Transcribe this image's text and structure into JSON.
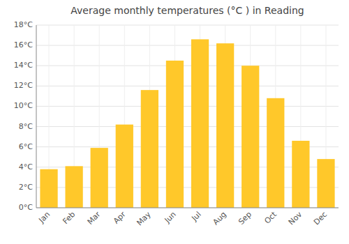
{
  "chart_data": {
    "type": "bar",
    "title": "Average monthly temperatures (°C ) in Reading",
    "categories": [
      "Jan",
      "Feb",
      "Mar",
      "Apr",
      "May",
      "Jun",
      "Jul",
      "Aug",
      "Sep",
      "Oct",
      "Nov",
      "Dec"
    ],
    "values": [
      3.8,
      4.1,
      5.9,
      8.2,
      11.6,
      14.5,
      16.6,
      16.2,
      14.0,
      10.8,
      6.6,
      4.8
    ],
    "color": "#FFC82A",
    "ylim": [
      0,
      18
    ],
    "yticks": [
      {
        "value": 0,
        "label": "0°C"
      },
      {
        "value": 2,
        "label": "2°C"
      },
      {
        "value": 4,
        "label": "4°C"
      },
      {
        "value": 6,
        "label": "6°C"
      },
      {
        "value": 8,
        "label": "8°C"
      },
      {
        "value": 10,
        "label": "10°C"
      },
      {
        "value": 12,
        "label": "12°C"
      },
      {
        "value": 14,
        "label": "14°C"
      },
      {
        "value": 16,
        "label": "16°C"
      },
      {
        "value": 18,
        "label": "18°C"
      }
    ],
    "grid": true
  }
}
